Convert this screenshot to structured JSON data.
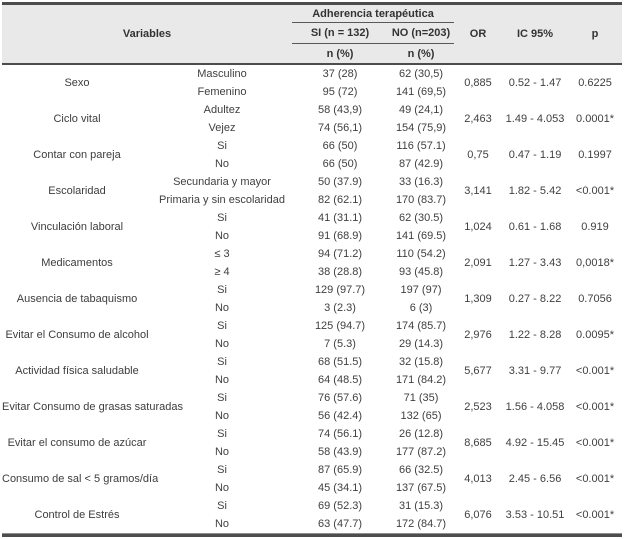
{
  "table": {
    "header": {
      "variables_label": "Variables",
      "adherence_label": "Adherencia terapéutica",
      "si_label": "SI (n = 132)",
      "no_label": "NO (n=203)",
      "n_pct_label": "n (%)",
      "or_label": "OR",
      "ci_label": "IC 95%",
      "p_label": "p"
    },
    "groups": [
      {
        "variable": "Sexo",
        "rows": [
          [
            "Masculino",
            "37 (28)",
            "62 (30,5)"
          ],
          [
            "Femenino",
            "95 (72)",
            "141 (69,5)"
          ]
        ],
        "or": "0,885",
        "ci": "0.52 - 1.47",
        "p": "0.6225"
      },
      {
        "variable": "Ciclo vital",
        "rows": [
          [
            "Adultez",
            "58 (43,9)",
            "49 (24,1)"
          ],
          [
            "Vejez",
            "74 (56,1)",
            "154 (75,9)"
          ]
        ],
        "or": "2,463",
        "ci": "1.49 - 4.053",
        "p": "0.0001*"
      },
      {
        "variable": "Contar con pareja",
        "rows": [
          [
            "Si",
            "66 (50)",
            "116 (57.1)"
          ],
          [
            "No",
            "66 (50)",
            "87 (42.9)"
          ]
        ],
        "or": "0,75",
        "ci": "0.47 - 1.19",
        "p": "0.1997"
      },
      {
        "variable": "Escolaridad",
        "rows": [
          [
            "Secundaria y mayor",
            "50 (37.9)",
            "33 (16.3)"
          ],
          [
            "Primaria y sin escolaridad",
            "82 (62.1)",
            "170 (83.7)"
          ]
        ],
        "or": "3,141",
        "ci": "1.82 - 5.42",
        "p": "<0.001*"
      },
      {
        "variable": "Vinculación laboral",
        "rows": [
          [
            "Si",
            "41 (31.1)",
            "62 (30.5)"
          ],
          [
            "No",
            "91 (68.9)",
            "141 (69.5)"
          ]
        ],
        "or": "1,024",
        "ci": "0.61 - 1.68",
        "p": "0.919"
      },
      {
        "variable": "Medicamentos",
        "rows": [
          [
            "≤ 3",
            "94 (71.2)",
            "110 (54.2)"
          ],
          [
            "≥ 4",
            "38 (28.8)",
            "93 (45.8)"
          ]
        ],
        "or": "2,091",
        "ci": "1.27 - 3.43",
        "p": "0,0018*"
      },
      {
        "variable": "Ausencia de tabaquismo",
        "rows": [
          [
            "Si",
            "129 (97.7)",
            "197 (97)"
          ],
          [
            "No",
            "3 (2.3)",
            "6 (3)"
          ]
        ],
        "or": "1,309",
        "ci": "0.27 - 8.22",
        "p": "0.7056"
      },
      {
        "variable": "Evitar el Consumo de alcohol",
        "rows": [
          [
            "Si",
            "125 (94.7)",
            "174 (85.7)"
          ],
          [
            "No",
            "7 (5.3)",
            "29 (14.3)"
          ]
        ],
        "or": "2,976",
        "ci": "1.22 - 8.28",
        "p": "0.0095*"
      },
      {
        "variable": "Actividad física saludable",
        "rows": [
          [
            "Si",
            "68 (51.5)",
            "32 (15.8)"
          ],
          [
            "No",
            "64 (48.5)",
            "171 (84.2)"
          ]
        ],
        "or": "5,677",
        "ci": "3.31 - 9.77",
        "p": "<0.001*"
      },
      {
        "variable": "Evitar Consumo de grasas saturadas",
        "rows": [
          [
            "Si",
            "76 (57.6)",
            "71 (35)"
          ],
          [
            "No",
            "56 (42.4)",
            "132 (65)"
          ]
        ],
        "or": "2,523",
        "ci": "1.56 - 4.058",
        "p": "<0.001*"
      },
      {
        "variable": "Evitar el consumo de azúcar",
        "rows": [
          [
            "Si",
            "74 (56.1)",
            "26 (12.8)"
          ],
          [
            "No",
            "58 (43.9)",
            "177 (87.2)"
          ]
        ],
        "or": "8,685",
        "ci": "4.92 - 15.45",
        "p": "<0.001*"
      },
      {
        "variable": "Consumo de sal < 5 gramos/día",
        "rows": [
          [
            "Si",
            "87 (65.9)",
            "66 (32.5)"
          ],
          [
            "No",
            "45 (34.1)",
            "137 (67.5)"
          ]
        ],
        "or": "4,013",
        "ci": "2.45 - 6.56",
        "p": "<0.001*"
      },
      {
        "variable": "Control de Estrés",
        "rows": [
          [
            "Si",
            "69 (52.3)",
            "31 (15.3)"
          ],
          [
            "No",
            "63 (47.7)",
            "172 (84.7)"
          ]
        ],
        "or": "6,076",
        "ci": "3.53 - 10.51",
        "p": "<0.001*"
      }
    ]
  },
  "colors": {
    "header_background": "#e9e9e9",
    "rule_dark": "#4d4d4d",
    "rule_light": "#8f8f8f",
    "text": "#3d3d3d"
  }
}
